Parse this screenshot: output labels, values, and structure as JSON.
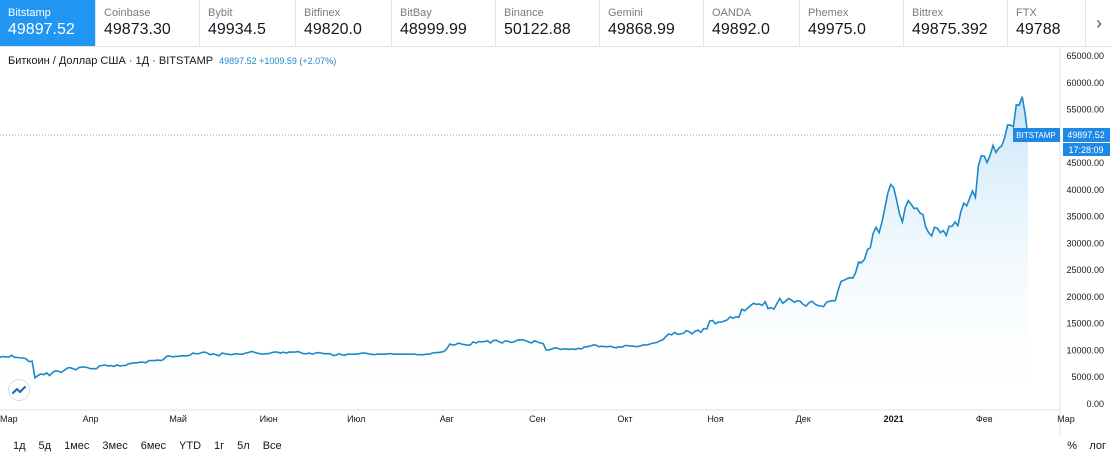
{
  "tabs": [
    {
      "exchange": "Bitstamp",
      "price": "49897.52",
      "active": true
    },
    {
      "exchange": "Coinbase",
      "price": "49873.30"
    },
    {
      "exchange": "Bybit",
      "price": "49934.5"
    },
    {
      "exchange": "Bitfinex",
      "price": "49820.0"
    },
    {
      "exchange": "BitBay",
      "price": "48999.99"
    },
    {
      "exchange": "Binance",
      "price": "50122.88"
    },
    {
      "exchange": "Gemini",
      "price": "49868.99"
    },
    {
      "exchange": "OANDA",
      "price": "49892.0"
    },
    {
      "exchange": "Phemex",
      "price": "49975.0"
    },
    {
      "exchange": "Bittrex",
      "price": "49875.392"
    },
    {
      "exchange": "FTX",
      "price": "49788"
    }
  ],
  "legend": {
    "title": "Биткоин / Доллар США · 1Д · BITSTAMP",
    "value": "49897.52 +1009.59 (+2.07%)"
  },
  "price_label": {
    "exchange": "BITSTAMP",
    "price": "49897.52",
    "countdown": "17:28:09"
  },
  "colors": {
    "line": "#1e88c7",
    "fill": "#bfe1f7",
    "accent": "#2196f3",
    "label": "#1e88e5"
  },
  "ranges": [
    "1д",
    "5д",
    "1мес",
    "3мес",
    "6мес",
    "YTD",
    "1г",
    "5л",
    "Все"
  ],
  "bottom_right": {
    "percent": "%",
    "log": "лог"
  },
  "chart_data": {
    "type": "area",
    "y_ticks": [
      "65000.00",
      "60000.00",
      "55000.00",
      "50000.00",
      "45000.00",
      "40000.00",
      "35000.00",
      "30000.00",
      "25000.00",
      "20000.00",
      "15000.00",
      "10000.00",
      "5000.00",
      "0.00"
    ],
    "y_tick_values": [
      65000,
      60000,
      55000,
      50000,
      45000,
      40000,
      35000,
      30000,
      25000,
      20000,
      15000,
      10000,
      5000,
      0
    ],
    "x_ticks": [
      "Мар",
      "Апр",
      "Май",
      "Июн",
      "Июл",
      "Авг",
      "Сен",
      "Окт",
      "Ноя",
      "Дек",
      "2021",
      "Фев",
      "Мар"
    ],
    "x_tick_index": [
      0,
      31,
      61,
      92,
      122,
      153,
      184,
      214,
      245,
      275,
      306,
      337,
      365
    ],
    "ylim": [
      0,
      65000
    ],
    "grid": false,
    "series": [
      {
        "values": [
          8700,
          8900,
          8800,
          8800,
          9100,
          8700,
          8700,
          8600,
          8600,
          8400,
          7900,
          8000,
          4900,
          5300,
          5600,
          5500,
          5800,
          5300,
          5900,
          6200,
          6100,
          5900,
          6300,
          6700,
          6800,
          6600,
          6400,
          6800,
          6900,
          6900,
          6800,
          6600,
          6600,
          6600,
          7100,
          7200,
          7300,
          7100,
          7200,
          7000,
          7300,
          7100,
          7200,
          7200,
          7500,
          7600,
          7700,
          7700,
          7800,
          7800,
          7700,
          8100,
          8100,
          8100,
          8200,
          8100,
          8300,
          8900,
          9000,
          8800,
          8900,
          8900,
          9000,
          9000,
          9000,
          9100,
          9500,
          9400,
          9400,
          9600,
          9700,
          9500,
          9200,
          9400,
          9200,
          9000,
          9500,
          9400,
          9300,
          9200,
          9300,
          9400,
          9300,
          9300,
          9500,
          9600,
          9800,
          9700,
          9500,
          9400,
          9300,
          9400,
          9400,
          9600,
          9700,
          9700,
          9500,
          9700,
          9500,
          9700,
          9700,
          9700,
          9800,
          9600,
          9400,
          9400,
          9500,
          9300,
          9500,
          9600,
          9500,
          9400,
          9400,
          9400,
          9100,
          9100,
          9400,
          9200,
          9100,
          9300,
          9300,
          9300,
          9300,
          9400,
          9500,
          9500,
          9400,
          9300,
          9200,
          9300,
          9300,
          9300,
          9300,
          9400,
          9400,
          9300,
          9300,
          9300,
          9300,
          9300,
          9300,
          9300,
          9300,
          9200,
          9200,
          9200,
          9300,
          9300,
          9500,
          9600,
          9600,
          9700,
          9800,
          10300,
          11200,
          11000,
          11100,
          11400,
          11200,
          11100,
          11000,
          11000,
          11600,
          11400,
          11700,
          11600,
          11700,
          11800,
          11400,
          11900,
          11900,
          11600,
          11400,
          11800,
          11700,
          11500,
          11600,
          11900,
          12000,
          12000,
          11800,
          11600,
          11400,
          11800,
          11600,
          11400,
          11300,
          10100,
          10100,
          10300,
          10500,
          10400,
          10200,
          10300,
          10300,
          10200,
          10300,
          10200,
          10400,
          10300,
          10600,
          10700,
          10800,
          11000,
          11000,
          10700,
          10800,
          10700,
          10700,
          10800,
          10600,
          10500,
          10700,
          10600,
          10900,
          10900,
          10800,
          10800,
          10700,
          10800,
          11000,
          11000,
          11100,
          11300,
          11400,
          11500,
          11800,
          12000,
          12600,
          13100,
          12900,
          13400,
          13000,
          13100,
          13200,
          13700,
          13500,
          13100,
          13600,
          13800,
          13400,
          14100,
          14000,
          15500,
          15600,
          15000,
          15300,
          15300,
          15500,
          15700,
          16300,
          16000,
          16300,
          16200,
          17700,
          17400,
          17900,
          18400,
          18800,
          18600,
          18700,
          18400,
          19100,
          17800,
          18000,
          17700,
          18700,
          19700,
          18800,
          19200,
          19700,
          19400,
          19000,
          19300,
          19200,
          18600,
          18300,
          18900,
          19200,
          18700,
          18400,
          18300,
          18200,
          19000,
          19200,
          19300,
          19300,
          21300,
          22900,
          23100,
          23400,
          23600,
          23500,
          24600,
          26500,
          26400,
          27000,
          28800,
          29200,
          31900,
          33000,
          32000,
          34000,
          36600,
          39400,
          41000,
          40400,
          38100,
          35500,
          34000,
          36700,
          38000,
          37300,
          36500,
          36600,
          35700,
          35400,
          33000,
          32000,
          31400,
          33000,
          32800,
          32000,
          32400,
          31500,
          33200,
          33200,
          34000,
          33300,
          35900,
          37500,
          37000,
          38400,
          39800,
          38600,
          44500,
          46400,
          46300,
          45100,
          46400,
          48300,
          47000,
          47800,
          48200,
          49700,
          52100,
          52100,
          51800,
          55900,
          55800,
          57400,
          54200,
          49897
        ]
      }
    ]
  }
}
